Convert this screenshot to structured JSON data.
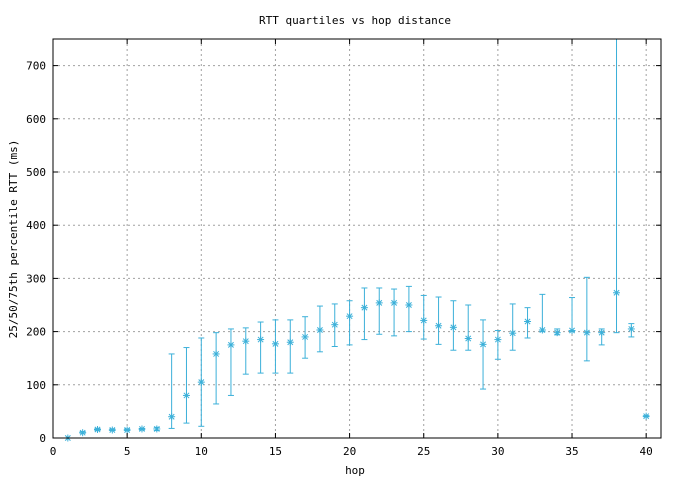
{
  "chart_data": {
    "type": "scatter",
    "title": "RTT quartiles vs hop distance",
    "xlabel": "hop",
    "ylabel": "25/50/75th percentile RTT (ms)",
    "xlim": [
      0,
      41
    ],
    "ylim": [
      0,
      750
    ],
    "xticks": [
      0,
      5,
      10,
      15,
      20,
      25,
      30,
      35,
      40
    ],
    "yticks": [
      0,
      100,
      200,
      300,
      400,
      500,
      600,
      700
    ],
    "grid": true,
    "color": "#3bb0d9",
    "marker": "asterisk",
    "series": [
      {
        "x": [
          1,
          2,
          3,
          4,
          5,
          6,
          7,
          8,
          9,
          10,
          11,
          12,
          13,
          14,
          15,
          16,
          17,
          18,
          19,
          20,
          21,
          22,
          23,
          24,
          25,
          26,
          27,
          28,
          29,
          30,
          31,
          32,
          33,
          34,
          35,
          36,
          37,
          38,
          39,
          40
        ],
        "p25": [
          0,
          9,
          14,
          14,
          14,
          15,
          14,
          18,
          28,
          22,
          64,
          80,
          120,
          122,
          122,
          122,
          150,
          162,
          172,
          175,
          185,
          195,
          192,
          200,
          186,
          176,
          165,
          165,
          92,
          148,
          165,
          188,
          200,
          194,
          200,
          145,
          175,
          198,
          190,
          40
        ],
        "p50": [
          0,
          10,
          16,
          15,
          15,
          17,
          17,
          40,
          80,
          105,
          158,
          175,
          182,
          185,
          177,
          180,
          190,
          203,
          213,
          229,
          245,
          254,
          254,
          250,
          221,
          211,
          208,
          187,
          176,
          185,
          197,
          219,
          203,
          198,
          202,
          198,
          198,
          273,
          205,
          41
        ],
        "p75": [
          0,
          12,
          18,
          17,
          17,
          18,
          20,
          158,
          170,
          188,
          198,
          205,
          207,
          218,
          222,
          222,
          228,
          248,
          252,
          258,
          282,
          282,
          280,
          285,
          268,
          265,
          258,
          250,
          222,
          202,
          252,
          245,
          270,
          205,
          264,
          302,
          205,
          750,
          215,
          42
        ]
      }
    ]
  }
}
